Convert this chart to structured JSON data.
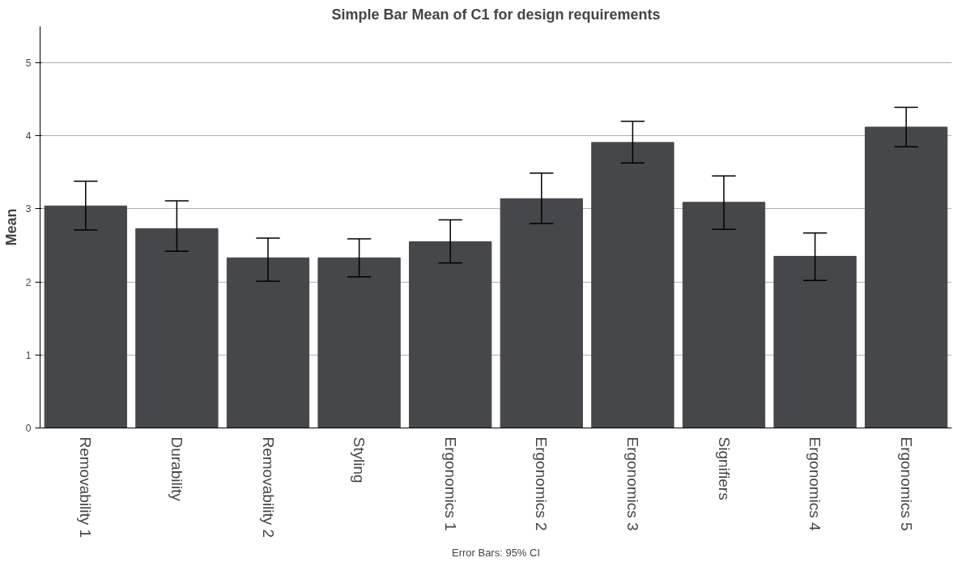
{
  "chart_data": {
    "type": "bar",
    "title": "Simple Bar Mean of C1 for design requirements",
    "ylabel": "Mean",
    "categories": [
      "Removability 1",
      "Durability",
      "Removability 2",
      "Styling",
      "Ergonomics 1",
      "Ergonomics 2",
      "Ergonomics 3",
      "Signifiers",
      "Ergonomics 4",
      "Ergonomics 5"
    ],
    "values": [
      3.04,
      2.73,
      2.33,
      2.33,
      2.55,
      3.14,
      3.91,
      3.09,
      2.35,
      4.12
    ],
    "errors": [
      [
        2.71,
        3.38
      ],
      [
        2.42,
        3.11
      ],
      [
        2.01,
        2.6
      ],
      [
        2.07,
        2.59
      ],
      [
        2.26,
        2.85
      ],
      [
        2.8,
        3.49
      ],
      [
        3.63,
        4.2
      ],
      [
        2.72,
        3.45
      ],
      [
        2.02,
        2.67
      ],
      [
        3.85,
        4.39
      ]
    ],
    "color": "#46474a",
    "ylim": [
      0,
      5.5
    ],
    "yticks": [
      0,
      1,
      2,
      3,
      4,
      5
    ],
    "grid": "y",
    "annotations": [
      "Error Bars: 95% CI"
    ]
  }
}
